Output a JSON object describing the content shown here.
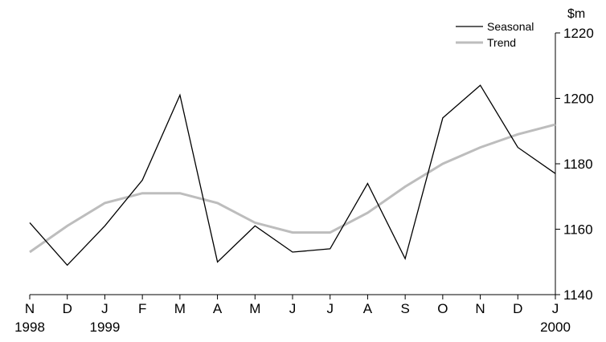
{
  "chart_data": {
    "type": "line",
    "title": "",
    "xlabel": "",
    "ylabel": "$m",
    "ylim": [
      1140,
      1220
    ],
    "yticks": [
      1140,
      1160,
      1180,
      1200,
      1220
    ],
    "y_axis_position": "right",
    "grid": false,
    "legend_position": "top-right",
    "categories": [
      "N",
      "D",
      "J",
      "F",
      "M",
      "A",
      "M",
      "J",
      "J",
      "A",
      "S",
      "O",
      "N",
      "D",
      "J"
    ],
    "year_labels": [
      {
        "index": 0,
        "label": "1998"
      },
      {
        "index": 2,
        "label": "1999"
      },
      {
        "index": 14,
        "label": "2000"
      }
    ],
    "series": [
      {
        "name": "Seasonal",
        "color": "#000000",
        "values": [
          1162,
          1149,
          1161,
          1175,
          1201,
          1150,
          1161,
          1153,
          1154,
          1174,
          1151,
          1194,
          1204,
          1185,
          1177
        ]
      },
      {
        "name": "Trend",
        "color": "#bdbdbd",
        "values": [
          1153,
          1161,
          1168,
          1171,
          1171,
          1168,
          1162,
          1159,
          1159,
          1165,
          1173,
          1180,
          1185,
          1189,
          1192
        ]
      }
    ]
  }
}
